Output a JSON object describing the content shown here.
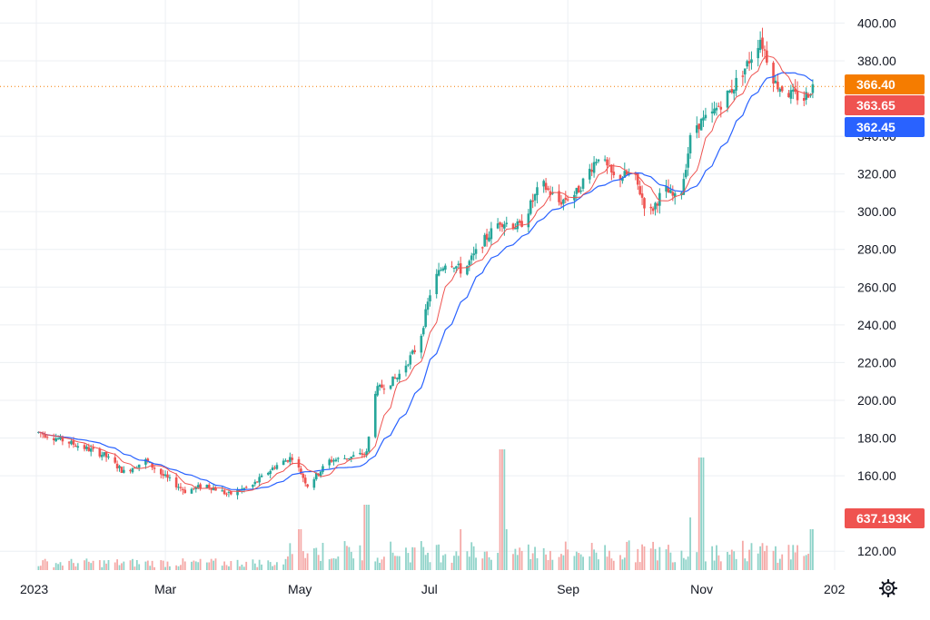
{
  "chart_data": {
    "type": "candlestick",
    "grid": true,
    "y_axis_side": "right",
    "ylim": [
      110,
      405
    ],
    "y_ticks": [
      "120.00",
      "160.00",
      "180.00",
      "200.00",
      "220.00",
      "240.00",
      "260.00",
      "280.00",
      "300.00",
      "320.00",
      "340.00",
      "380.00",
      "400.00"
    ],
    "x_ticks": [
      "2023",
      "Mar",
      "May",
      "Jul",
      "Sep",
      "Nov",
      "202"
    ],
    "colors": {
      "up": "#26a69a",
      "down": "#ef5350",
      "ma_fast": "#ef5350",
      "ma_slow": "#2962ff",
      "last_price": "#f57c00",
      "grid": "#eceff3",
      "volume_up": "#8fd3c9",
      "volume_down": "#f5a9a7"
    },
    "price_path": [
      [
        "2023-01-02",
        183
      ],
      [
        "2023-01-10",
        180
      ],
      [
        "2023-01-20",
        176
      ],
      [
        "2023-02-01",
        171
      ],
      [
        "2023-02-10",
        162
      ],
      [
        "2023-02-20",
        168
      ],
      [
        "2023-02-28",
        160
      ],
      [
        "2023-03-10",
        152
      ],
      [
        "2023-03-20",
        155
      ],
      [
        "2023-03-30",
        150
      ],
      [
        "2023-04-10",
        155
      ],
      [
        "2023-04-20",
        165
      ],
      [
        "2023-04-28",
        170
      ],
      [
        "2023-05-05",
        155
      ],
      [
        "2023-05-15",
        168
      ],
      [
        "2023-05-25",
        170
      ],
      [
        "2023-06-01",
        172
      ],
      [
        "2023-06-05",
        205
      ],
      [
        "2023-06-15",
        212
      ],
      [
        "2023-06-25",
        230
      ],
      [
        "2023-07-01",
        262
      ],
      [
        "2023-07-08",
        275
      ],
      [
        "2023-07-15",
        268
      ],
      [
        "2023-07-25",
        285
      ],
      [
        "2023-08-01",
        295
      ],
      [
        "2023-08-10",
        292
      ],
      [
        "2023-08-20",
        315
      ],
      [
        "2023-08-28",
        305
      ],
      [
        "2023-09-05",
        310
      ],
      [
        "2023-09-15",
        330
      ],
      [
        "2023-09-22",
        318
      ],
      [
        "2023-10-01",
        320
      ],
      [
        "2023-10-08",
        298
      ],
      [
        "2023-10-15",
        312
      ],
      [
        "2023-10-22",
        305
      ],
      [
        "2023-10-28",
        345
      ],
      [
        "2023-11-05",
        350
      ],
      [
        "2023-11-15",
        365
      ],
      [
        "2023-11-22",
        378
      ],
      [
        "2023-11-28",
        392
      ],
      [
        "2023-12-05",
        368
      ],
      [
        "2023-12-12",
        362
      ],
      [
        "2023-12-18",
        360
      ],
      [
        "2023-12-22",
        366.4
      ]
    ],
    "volume_peaks": [
      [
        "2023-05-01",
        45
      ],
      [
        "2023-06-01",
        72
      ],
      [
        "2023-07-15",
        45
      ],
      [
        "2023-08-02",
        133
      ],
      [
        "2023-08-05",
        45
      ],
      [
        "2023-10-28",
        58
      ],
      [
        "2023-11-01",
        124
      ],
      [
        "2023-12-22",
        45
      ]
    ],
    "badges": [
      {
        "label": "366.40",
        "color": "#f57c00",
        "value": 366.4
      },
      {
        "label": "363.65",
        "color": "#ef5350",
        "value": 363.65
      },
      {
        "label": "362.45",
        "color": "#2962ff",
        "value": 362.45
      },
      {
        "label": "637.193K",
        "color": "#ef5350",
        "value": 139.0
      }
    ],
    "last_price": 366.4
  }
}
